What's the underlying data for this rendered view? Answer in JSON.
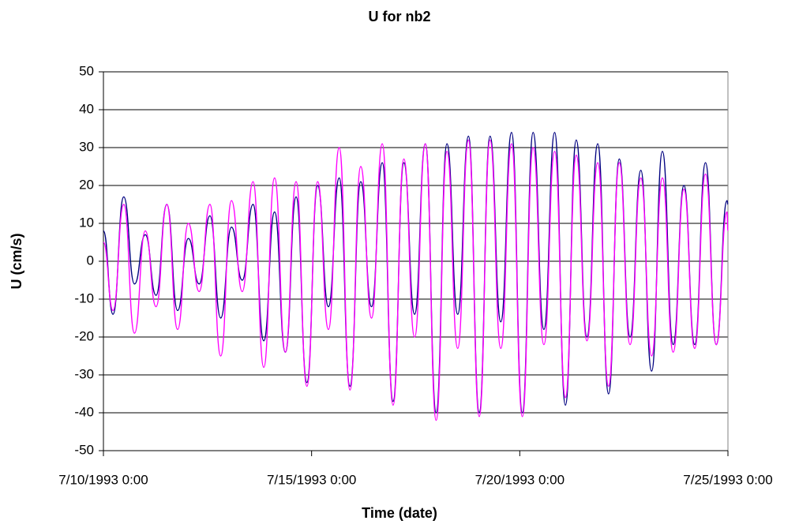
{
  "chart_data": {
    "type": "line",
    "title": "U for nb2",
    "x_label": "Time (date)",
    "y_label": "U (cm/s)",
    "x": [
      "7/10/1993 0:00",
      "7/10/1993 5:30",
      "7/10/1993 11:43",
      "7/10/1993 17:55",
      "7/11/1993 0:08",
      "7/11/1993 6:20",
      "7/11/1993 12:33",
      "7/11/1993 18:46",
      "7/12/1993 0:58",
      "7/12/1993 7:11",
      "7/12/1993 13:23",
      "7/12/1993 19:36",
      "7/13/1993 1:49",
      "7/13/1993 8:01",
      "7/13/1993 14:14",
      "7/13/1993 20:26",
      "7/14/1993 2:39",
      "7/14/1993 8:52",
      "7/14/1993 15:04",
      "7/14/1993 21:17",
      "7/15/1993 3:29",
      "7/15/1993 9:42",
      "7/15/1993 15:55",
      "7/15/1993 22:07",
      "7/16/1993 4:20",
      "7/16/1993 10:32",
      "7/16/1993 16:45",
      "7/16/1993 22:58",
      "7/17/1993 5:10",
      "7/17/1993 11:23",
      "7/17/1993 17:35",
      "7/17/1993 23:48",
      "7/18/1993 6:01",
      "7/18/1993 12:13",
      "7/18/1993 18:26",
      "7/19/1993 0:38",
      "7/19/1993 6:51",
      "7/19/1993 13:04",
      "7/19/1993 19:16",
      "7/20/1993 1:29",
      "7/20/1993 7:41",
      "7/20/1993 13:54",
      "7/20/1993 20:07",
      "7/21/1993 2:19",
      "7/21/1993 8:32",
      "7/21/1993 14:44",
      "7/21/1993 20:57",
      "7/22/1993 3:10",
      "7/22/1993 9:22",
      "7/22/1993 15:35",
      "7/22/1993 21:47",
      "7/23/1993 4:00",
      "7/23/1993 10:13",
      "7/23/1993 16:25",
      "7/23/1993 22:38",
      "7/24/1993 4:50",
      "7/24/1993 11:03",
      "7/24/1993 17:16",
      "7/24/1993 23:28",
      "7/25/1993 0:00"
    ],
    "series": [
      {
        "color": "#000080",
        "values": [
          8,
          -14,
          17,
          -6,
          7,
          -9,
          15,
          -13,
          6,
          -6,
          12,
          -15,
          9,
          -5,
          15,
          -21,
          13,
          -24,
          17,
          -32,
          20,
          -12,
          22,
          -33,
          21,
          -12,
          26,
          -37,
          26,
          -14,
          31,
          -40,
          31,
          -14,
          33,
          -40,
          33,
          -16,
          34,
          -40,
          34,
          -18,
          34,
          -38,
          32,
          -20,
          31,
          -35,
          27,
          -20,
          24,
          -29,
          29,
          -22,
          20,
          -22,
          26,
          -22,
          16,
          15
        ]
      },
      {
        "color": "#ff00ff",
        "values": [
          5,
          -13,
          15,
          -19,
          8,
          -12,
          15,
          -18,
          10,
          -8,
          15,
          -25,
          16,
          -8,
          21,
          -28,
          22,
          -24,
          21,
          -33,
          21,
          -18,
          30,
          -34,
          25,
          -15,
          31,
          -38,
          27,
          -20,
          31,
          -42,
          29,
          -23,
          32,
          -41,
          32,
          -23,
          31,
          -41,
          30,
          -22,
          29,
          -36,
          28,
          -21,
          26,
          -33,
          26,
          -22,
          22,
          -25,
          22,
          -24,
          19,
          -23,
          23,
          -22,
          13,
          8
        ]
      }
    ],
    "xlim": [
      "7/10/1993 0:00",
      "7/25/1993 0:00"
    ],
    "xticks": [
      "7/10/1993 0:00",
      "7/15/1993 0:00",
      "7/20/1993 0:00",
      "7/25/1993 0:00"
    ],
    "ylim": [
      -50,
      50
    ],
    "yticks": [
      -50,
      -40,
      -30,
      -20,
      -10,
      0,
      10,
      20,
      30,
      40,
      50
    ],
    "grid": true
  }
}
